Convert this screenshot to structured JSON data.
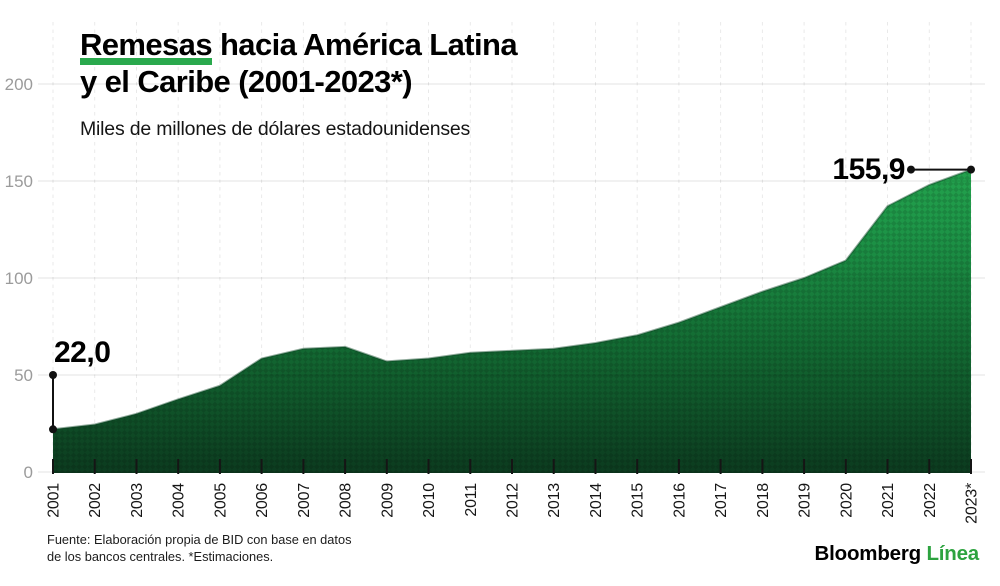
{
  "chart_data": {
    "type": "area",
    "title": "Remesas hacia América Latina y el Caribe (2001-2023*)",
    "title_highlight": "Remesas",
    "title_line1_rest": "hacia América Latina",
    "title_line2": "y el Caribe (2001-2023*)",
    "subtitle": "Miles de millones de dólares estadounidenses",
    "categories": [
      "2001",
      "2002",
      "2003",
      "2004",
      "2005",
      "2006",
      "2007",
      "2008",
      "2009",
      "2010",
      "2011",
      "2012",
      "2013",
      "2014",
      "2015",
      "2016",
      "2017",
      "2018",
      "2019",
      "2020",
      "2021",
      "2022",
      "2023*"
    ],
    "values": [
      22.0,
      24.5,
      30.0,
      37.5,
      44.5,
      58.5,
      63.5,
      64.5,
      57.0,
      58.5,
      61.5,
      62.5,
      63.5,
      66.5,
      70.5,
      77.0,
      85.0,
      93.0,
      100.0,
      109.0,
      137.0,
      148.0,
      155.9
    ],
    "ylim": [
      0,
      200
    ],
    "yticks": [
      0,
      50,
      100,
      150,
      200
    ],
    "grid": {
      "horizontal": "solid",
      "vertical": "dashed"
    },
    "legend": "none",
    "annotations": [
      {
        "category": "2001",
        "label": "22,0",
        "value": 22.0,
        "connector": "vertical"
      },
      {
        "category": "2023*",
        "label": "155,9",
        "value": 155.9,
        "connector": "horizontal"
      }
    ],
    "colors": {
      "area_top": "#27ab51",
      "area_upper_mid": "#1d9447",
      "area_lower_mid": "#136b33",
      "area_bottom": "#0c3b1f",
      "area_edge": "#0a4523",
      "highlight_green": "#2aa94d",
      "grid_line": "#000000",
      "axis_label_gray": "#9b9b9b",
      "x_label_color": "#161616",
      "tick_color": "#151515",
      "callout_line": "#111111"
    }
  },
  "footer": {
    "source_line1": "Fuente: Elaboración propia de BID con base en datos",
    "source_line2": "de los bancos centrales. *Estimaciones.",
    "brand_black": "Bloomberg",
    "brand_green": "Línea"
  }
}
